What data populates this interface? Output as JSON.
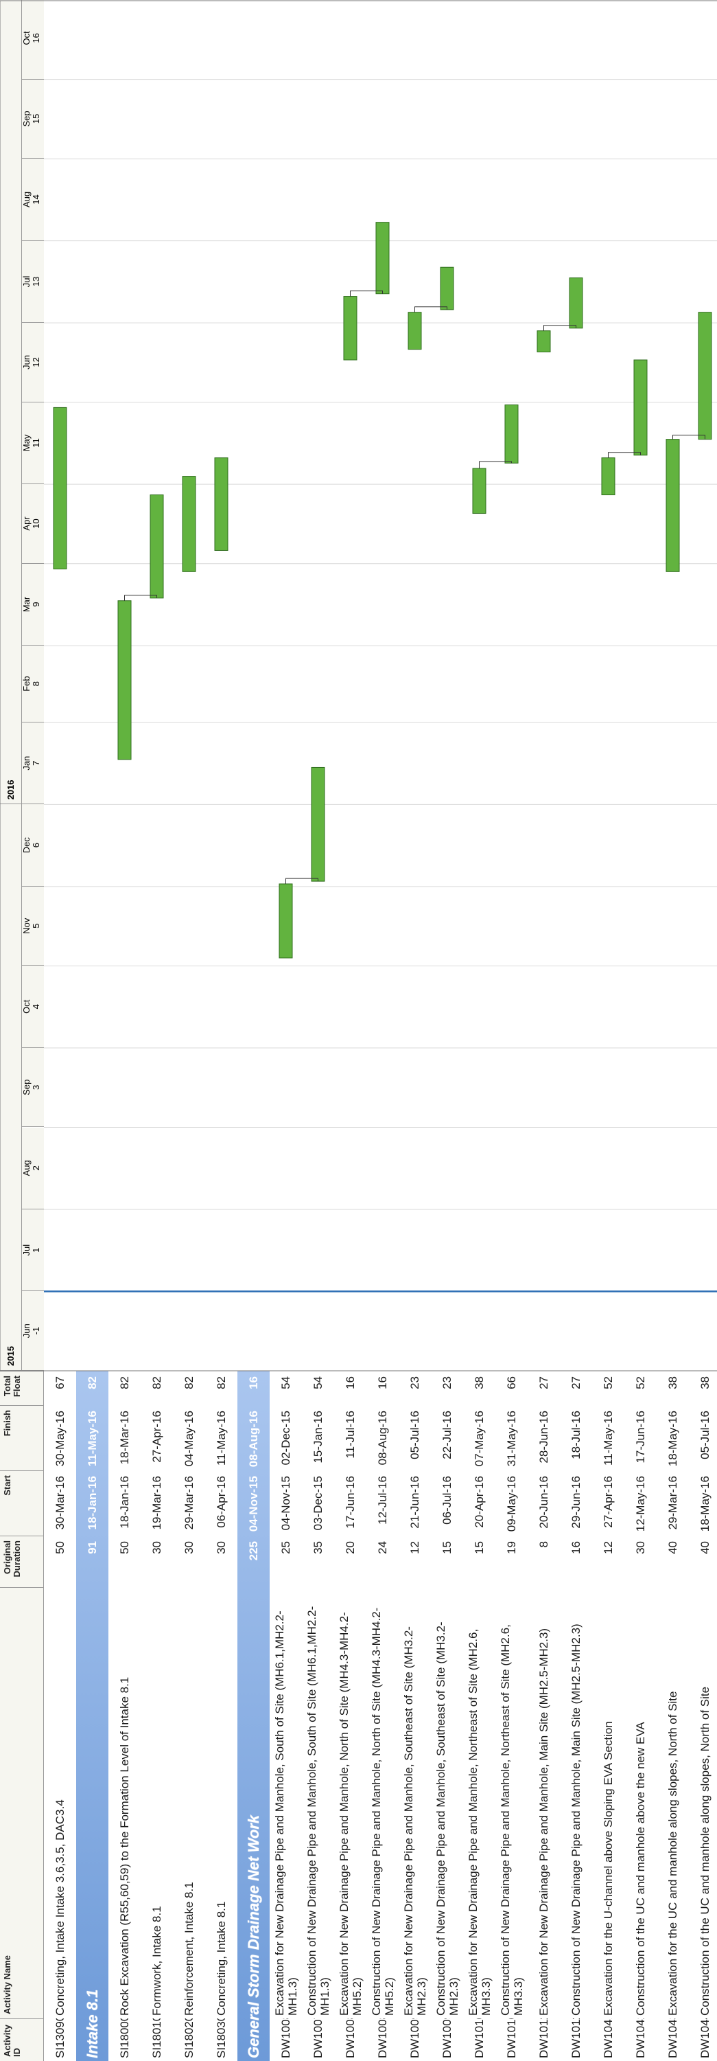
{
  "columns": {
    "id": "Activity ID",
    "name": "Activity Name",
    "duration": "Original Duration",
    "start": "Start",
    "finish": "Finish",
    "float": "Total Float"
  },
  "timeline": {
    "years": [
      "2015",
      "2016"
    ],
    "months": [
      {
        "name": "Jun",
        "num": "-1"
      },
      {
        "name": "Jul",
        "num": "1"
      },
      {
        "name": "Aug",
        "num": "2"
      },
      {
        "name": "Sep",
        "num": "3"
      },
      {
        "name": "Oct",
        "num": "4"
      },
      {
        "name": "Nov",
        "num": "5"
      },
      {
        "name": "Dec",
        "num": "6"
      },
      {
        "name": "Jan",
        "num": "7"
      },
      {
        "name": "Feb",
        "num": "8"
      },
      {
        "name": "Mar",
        "num": "9"
      },
      {
        "name": "Apr",
        "num": "10"
      },
      {
        "name": "May",
        "num": "11"
      },
      {
        "name": "Jun",
        "num": "12"
      },
      {
        "name": "Jul",
        "num": "13"
      },
      {
        "name": "Aug",
        "num": "14"
      },
      {
        "name": "Sep",
        "num": "15"
      },
      {
        "name": "Oct",
        "num": "16"
      }
    ],
    "data_date": "2015-07-01"
  },
  "colors": {
    "group_bg": "#6d9ad8",
    "group_bg_light": "#aac6ef",
    "bar_fill": "#62b33f",
    "bar_border": "#2f6d1c",
    "data_date_line": "#2f6fb5",
    "header_bg": "#f6f6f0"
  },
  "chart_data": {
    "type": "gantt",
    "rows": [
      {
        "id": "SI13090",
        "name": "Concreting, Intake Intake 3.6,3.5, DAC3.4",
        "duration": "50",
        "start": "30-Mar-16",
        "finish": "30-May-16",
        "float": "67",
        "s": "2016-03-30",
        "f": "2016-05-30"
      },
      {
        "group": true,
        "name": "Intake 8.1",
        "duration": "91",
        "start": "18-Jan-16",
        "finish": "11-May-16",
        "float": "82"
      },
      {
        "id": "SI18000",
        "name": "Rock Excavation (R55,60,59) to the Formation Level of Intake 8.1",
        "duration": "50",
        "start": "18-Jan-16",
        "finish": "18-Mar-16",
        "float": "82",
        "s": "2016-01-18",
        "f": "2016-03-18"
      },
      {
        "id": "SI18010",
        "name": "Formwork, Intake 8.1",
        "duration": "30",
        "start": "19-Mar-16",
        "finish": "27-Apr-16",
        "float": "82",
        "s": "2016-03-19",
        "f": "2016-04-27"
      },
      {
        "id": "SI18020",
        "name": "Reinforcement, Intake 8.1",
        "duration": "30",
        "start": "29-Mar-16",
        "finish": "04-May-16",
        "float": "82",
        "s": "2016-03-29",
        "f": "2016-05-04"
      },
      {
        "id": "SI18030",
        "name": "Concreting, Intake 8.1",
        "duration": "30",
        "start": "06-Apr-16",
        "finish": "11-May-16",
        "float": "82",
        "s": "2016-04-06",
        "f": "2016-05-11"
      },
      {
        "group": true,
        "name": "General Storm Drainage Net Work",
        "duration": "225",
        "start": "04-Nov-15",
        "finish": "08-Aug-16",
        "float": "16"
      },
      {
        "id": "DW10084",
        "name": "Excavation for New Drainage Pipe and Manhole, South of Site (MH6.1,MH2.2-MH1.3)",
        "duration": "25",
        "start": "04-Nov-15",
        "finish": "02-Dec-15",
        "float": "54",
        "s": "2015-11-04",
        "f": "2015-12-02"
      },
      {
        "id": "DW10070",
        "name": "Construction of New Drainage Pipe and Manhole, South of Site (MH6.1,MH2.2-MH1.3)",
        "duration": "35",
        "start": "03-Dec-15",
        "finish": "15-Jan-16",
        "float": "54",
        "s": "2015-12-03",
        "f": "2016-01-15"
      },
      {
        "id": "DW10080",
        "name": "Excavation for New Drainage Pipe and Manhole, North of Site (MH4.3-MH4.2-MH5.2)",
        "duration": "20",
        "start": "17-Jun-16",
        "finish": "11-Jul-16",
        "float": "16",
        "s": "2016-06-17",
        "f": "2016-07-11"
      },
      {
        "id": "DW10085",
        "name": "Construction of New Drainage Pipe and Manhole, North of Site (MH4.3-MH4.2-MH5.2)",
        "duration": "24",
        "start": "12-Jul-16",
        "finish": "08-Aug-16",
        "float": "16",
        "s": "2016-07-12",
        "f": "2016-08-08"
      },
      {
        "id": "DW10090",
        "name": "Excavation for New Drainage Pipe and Manhole, Southeast of Site (MH3.2-MH2.3)",
        "duration": "12",
        "start": "21-Jun-16",
        "finish": "05-Jul-16",
        "float": "23",
        "s": "2016-06-21",
        "f": "2016-07-05"
      },
      {
        "id": "DW10095",
        "name": "Construction of New Drainage Pipe and Manhole, Southeast of Site (MH3.2-MH2.3)",
        "duration": "15",
        "start": "06-Jul-16",
        "finish": "22-Jul-16",
        "float": "23",
        "s": "2016-07-06",
        "f": "2016-07-22"
      },
      {
        "id": "DW10100",
        "name": "Excavation for New Drainage Pipe and Manhole, Northeast of Site (MH2.6, MH3.3)",
        "duration": "15",
        "start": "20-Apr-16",
        "finish": "07-May-16",
        "float": "38",
        "s": "2016-04-20",
        "f": "2016-05-07"
      },
      {
        "id": "DW10105",
        "name": "Construction of New Drainage Pipe and Manhole, Northeast of Site (MH2.6, MH3.3)",
        "duration": "19",
        "start": "09-May-16",
        "finish": "31-May-16",
        "float": "66",
        "s": "2016-05-09",
        "f": "2016-05-31"
      },
      {
        "id": "DW10110",
        "name": "Excavation for New Drainage Pipe and Manhole, Main Site (MH2.5-MH2.3)",
        "duration": "8",
        "start": "20-Jun-16",
        "finish": "28-Jun-16",
        "float": "27",
        "s": "2016-06-20",
        "f": "2016-06-28"
      },
      {
        "id": "DW10115",
        "name": "Construction of New Drainage Pipe and Manhole, Main Site (MH2.5-MH2.3)",
        "duration": "16",
        "start": "29-Jun-16",
        "finish": "18-Jul-16",
        "float": "27",
        "s": "2016-06-29",
        "f": "2016-07-18"
      },
      {
        "id": "DW10410",
        "name": "Excavation for the U-channel above Sloping EVA Section",
        "duration": "12",
        "start": "27-Apr-16",
        "finish": "11-May-16",
        "float": "52",
        "s": "2016-04-27",
        "f": "2016-05-11"
      },
      {
        "id": "DW10420",
        "name": "Construction of the UC and manhole above the new EVA",
        "duration": "30",
        "start": "12-May-16",
        "finish": "17-Jun-16",
        "float": "52",
        "s": "2016-05-12",
        "f": "2016-06-17"
      },
      {
        "id": "DW10430",
        "name": "Excavation for the UC and manhole along slopes, North of Site",
        "duration": "40",
        "start": "29-Mar-16",
        "finish": "18-May-16",
        "float": "38",
        "s": "2016-03-29",
        "f": "2016-05-18"
      },
      {
        "id": "DW10440",
        "name": "Construction of the UC and manhole along slopes, North of Site",
        "duration": "40",
        "start": "18-May-16",
        "finish": "05-Jul-16",
        "float": "38",
        "s": "2016-05-18",
        "f": "2016-07-05"
      }
    ]
  }
}
